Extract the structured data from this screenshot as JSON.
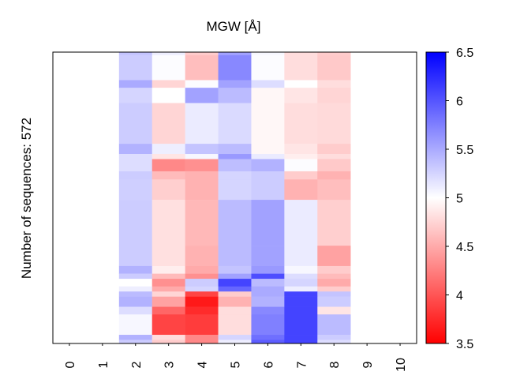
{
  "chart_data": {
    "type": "heatmap",
    "title": "MGW [Å]",
    "ylabel": "Number of sequences: 572",
    "xlabel": "",
    "x_ticks": [
      "0",
      "1",
      "2",
      "3",
      "4",
      "5",
      "6",
      "7",
      "8",
      "9",
      "10"
    ],
    "row_count": 572,
    "colorbar": {
      "min": 3.5,
      "max": 6.5,
      "center": 5.0,
      "ticks": [
        "3.5",
        "4",
        "4.5",
        "5",
        "5.5",
        "6",
        "6.5"
      ],
      "low_color": "#ff0000",
      "mid_color": "#ffffff",
      "high_color": "#0000ff"
    },
    "row_order_note": "rows top to bottom",
    "segment_columns": [
      "2",
      "3",
      "4",
      "5",
      "6",
      "7",
      "8"
    ],
    "segments": [
      {
        "rows": [
          0,
          6
        ],
        "values": [
          5.35,
          5.1,
          4.7,
          5.55,
          5.05,
          4.8,
          4.7
        ]
      },
      {
        "rows": [
          6,
          55
        ],
        "values": [
          5.3,
          5.02,
          4.62,
          5.7,
          5.02,
          4.8,
          4.68
        ]
      },
      {
        "rows": [
          55,
          70
        ],
        "values": [
          5.5,
          4.75,
          5.02,
          5.55,
          5.2,
          5.0,
          4.8
        ]
      },
      {
        "rows": [
          70,
          100
        ],
        "values": [
          5.25,
          5.0,
          5.55,
          5.4,
          4.95,
          4.85,
          4.75
        ]
      },
      {
        "rows": [
          100,
          180
        ],
        "values": [
          5.3,
          4.75,
          5.12,
          5.22,
          4.95,
          4.8,
          4.78
        ]
      },
      {
        "rows": [
          180,
          200
        ],
        "values": [
          5.45,
          5.1,
          5.35,
          5.4,
          4.95,
          4.85,
          4.7
        ]
      },
      {
        "rows": [
          200,
          210
        ],
        "values": [
          5.2,
          4.85,
          5.05,
          5.6,
          5.12,
          4.9,
          4.8
        ]
      },
      {
        "rows": [
          210,
          234
        ],
        "values": [
          5.2,
          4.3,
          4.35,
          5.38,
          5.45,
          5.02,
          4.68
        ]
      },
      {
        "rows": [
          234,
          250
        ],
        "values": [
          5.3,
          4.6,
          4.55,
          5.25,
          5.3,
          4.7,
          4.55
        ]
      },
      {
        "rows": [
          250,
          290
        ],
        "values": [
          5.28,
          4.72,
          4.55,
          5.25,
          5.3,
          4.55,
          4.62
        ]
      },
      {
        "rows": [
          290,
          380
        ],
        "values": [
          5.3,
          4.82,
          4.58,
          5.4,
          5.55,
          5.12,
          4.72
        ]
      },
      {
        "rows": [
          380,
          420
        ],
        "values": [
          5.3,
          4.82,
          4.55,
          5.4,
          5.55,
          5.12,
          4.45
        ]
      },
      {
        "rows": [
          420,
          435
        ],
        "values": [
          5.45,
          4.9,
          4.5,
          5.35,
          5.6,
          5.05,
          4.7
        ]
      },
      {
        "rows": [
          435,
          445
        ],
        "values": [
          5.3,
          4.6,
          4.35,
          5.55,
          6.05,
          5.2,
          4.6
        ]
      },
      {
        "rows": [
          445,
          460
        ],
        "values": [
          5.0,
          4.35,
          5.3,
          6.1,
          5.4,
          5.25,
          4.5
        ]
      },
      {
        "rows": [
          460,
          470
        ],
        "values": [
          5.1,
          4.5,
          5.25,
          5.9,
          5.5,
          5.1,
          4.7
        ]
      },
      {
        "rows": [
          470,
          480
        ],
        "values": [
          5.4,
          4.75,
          3.9,
          4.7,
          5.5,
          6.1,
          5.35
        ]
      },
      {
        "rows": [
          480,
          500
        ],
        "values": [
          5.45,
          4.45,
          3.65,
          4.55,
          5.45,
          6.1,
          5.3
        ]
      },
      {
        "rows": [
          500,
          515
        ],
        "values": [
          5.2,
          4.1,
          3.75,
          4.8,
          5.7,
          6.1,
          4.85
        ]
      },
      {
        "rows": [
          515,
          555
        ],
        "values": [
          5.05,
          3.9,
          3.85,
          4.8,
          5.75,
          6.1,
          5.4
        ]
      },
      {
        "rows": [
          555,
          565
        ],
        "values": [
          5.45,
          4.8,
          4.3,
          5.25,
          5.85,
          6.1,
          5.3
        ]
      },
      {
        "rows": [
          565,
          572
        ],
        "values": [
          5.3,
          4.7,
          4.3,
          5.1,
          5.95,
          6.1,
          5.2
        ]
      }
    ]
  }
}
